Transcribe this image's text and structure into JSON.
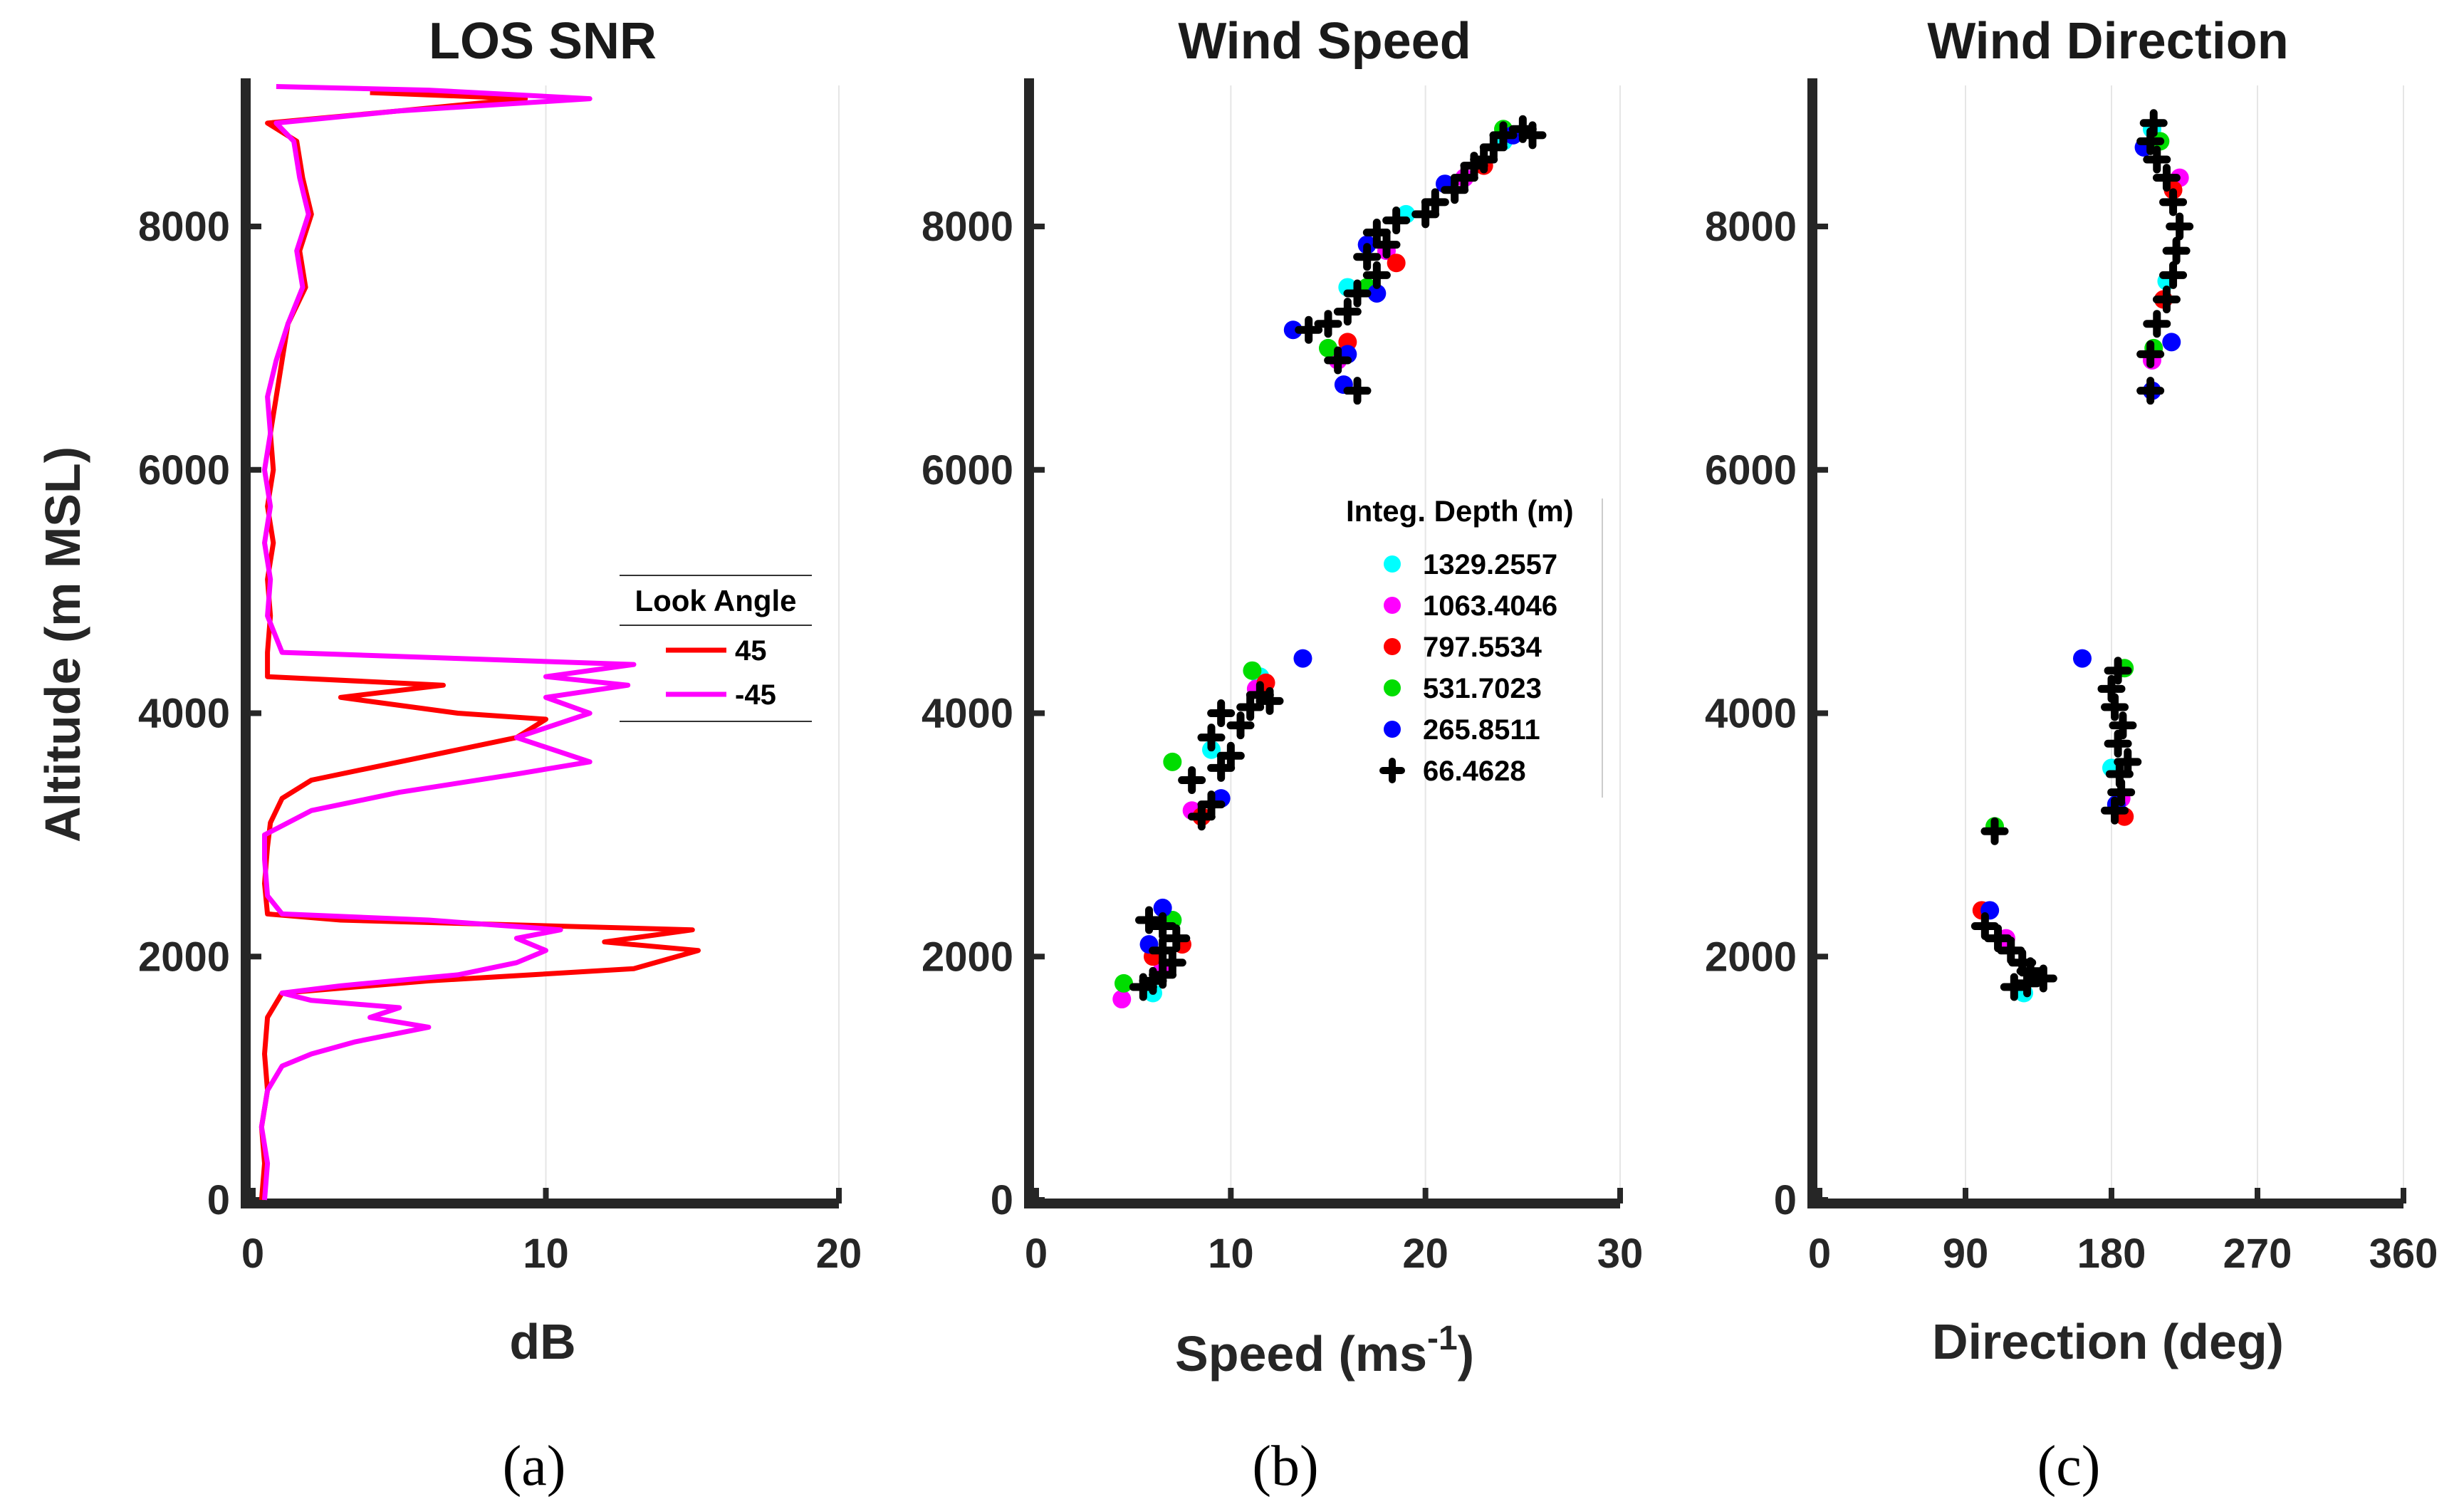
{
  "chart_data": [
    {
      "type": "line",
      "title": "LOS SNR",
      "xlabel": "dB",
      "ylabel": "Altitude (m MSL)",
      "xlim": [
        0,
        20
      ],
      "ylim": [
        0,
        9200
      ],
      "xticks": [
        0,
        10,
        20
      ],
      "yticks": [
        0,
        2000,
        4000,
        6000,
        8000
      ],
      "caption": "(a)",
      "legend": {
        "title": "Look Angle",
        "location": "center-right"
      },
      "series": [
        {
          "name": "45",
          "color": "#ff0000",
          "points": [
            [
              0.3,
              0
            ],
            [
              0.4,
              300
            ],
            [
              0.3,
              600
            ],
            [
              0.5,
              900
            ],
            [
              0.4,
              1200
            ],
            [
              0.5,
              1500
            ],
            [
              1,
              1700
            ],
            [
              6,
              1800
            ],
            [
              13,
              1900
            ],
            [
              15.2,
              2050
            ],
            [
              12,
              2120
            ],
            [
              15,
              2220
            ],
            [
              3,
              2300
            ],
            [
              0.5,
              2350
            ],
            [
              0.4,
              2600
            ],
            [
              0.5,
              2900
            ],
            [
              0.6,
              3100
            ],
            [
              1,
              3300
            ],
            [
              2,
              3450
            ],
            [
              4,
              3550
            ],
            [
              7,
              3700
            ],
            [
              9,
              3800
            ],
            [
              10,
              3950
            ],
            [
              7,
              4000
            ],
            [
              3,
              4130
            ],
            [
              6.5,
              4230
            ],
            [
              0.5,
              4300
            ],
            [
              0.5,
              4500
            ],
            [
              0.6,
              4800
            ],
            [
              0.5,
              5100
            ],
            [
              0.7,
              5400
            ],
            [
              0.5,
              5700
            ],
            [
              0.7,
              6000
            ],
            [
              0.6,
              6300
            ],
            [
              0.8,
              6600
            ],
            [
              1,
              6900
            ],
            [
              1.2,
              7200
            ],
            [
              1.8,
              7500
            ],
            [
              1.6,
              7800
            ],
            [
              2,
              8100
            ],
            [
              1.7,
              8400
            ],
            [
              1.5,
              8700
            ],
            [
              0.5,
              8850
            ],
            [
              5,
              8950
            ],
            [
              9.3,
              9050
            ],
            [
              4,
              9100
            ]
          ]
        },
        {
          "name": "-45",
          "color": "#ff00ff",
          "points": [
            [
              0.4,
              0
            ],
            [
              0.5,
              300
            ],
            [
              0.3,
              600
            ],
            [
              0.5,
              900
            ],
            [
              1,
              1100
            ],
            [
              2,
              1200
            ],
            [
              3.5,
              1300
            ],
            [
              6,
              1420
            ],
            [
              4,
              1500
            ],
            [
              5,
              1580
            ],
            [
              2,
              1640
            ],
            [
              1,
              1700
            ],
            [
              3,
              1760
            ],
            [
              7,
              1850
            ],
            [
              9,
              1950
            ],
            [
              10,
              2050
            ],
            [
              9,
              2150
            ],
            [
              10.5,
              2220
            ],
            [
              6,
              2300
            ],
            [
              1,
              2350
            ],
            [
              0.5,
              2500
            ],
            [
              0.4,
              2800
            ],
            [
              0.4,
              3000
            ],
            [
              2,
              3200
            ],
            [
              5,
              3350
            ],
            [
              9,
              3500
            ],
            [
              11.5,
              3600
            ],
            [
              9,
              3800
            ],
            [
              11.5,
              4000
            ],
            [
              10,
              4130
            ],
            [
              12.8,
              4230
            ],
            [
              10,
              4300
            ],
            [
              13,
              4400
            ],
            [
              7,
              4450
            ],
            [
              1,
              4500
            ],
            [
              0.5,
              4800
            ],
            [
              0.6,
              5100
            ],
            [
              0.4,
              5400
            ],
            [
              0.6,
              5700
            ],
            [
              0.4,
              6000
            ],
            [
              0.6,
              6300
            ],
            [
              0.5,
              6600
            ],
            [
              0.8,
              6900
            ],
            [
              1.2,
              7200
            ],
            [
              1.7,
              7500
            ],
            [
              1.5,
              7800
            ],
            [
              1.9,
              8100
            ],
            [
              1.6,
              8400
            ],
            [
              1.4,
              8700
            ],
            [
              0.8,
              8850
            ],
            [
              5,
              8950
            ],
            [
              11.5,
              9050
            ],
            [
              6,
              9120
            ],
            [
              0.8,
              9150
            ]
          ]
        }
      ]
    },
    {
      "type": "scatter",
      "title": "Wind Speed",
      "xlabel": "Speed (ms",
      "xlabel_sup": "-1",
      "xlabel_close": ")",
      "xlim": [
        0,
        30
      ],
      "ylim": [
        0,
        9200
      ],
      "xticks": [
        0,
        10,
        20,
        30
      ],
      "yticks": [
        0,
        2000,
        4000,
        6000,
        8000
      ],
      "caption": "(b)",
      "legend": {
        "title": "Integ. Depth (m)",
        "location": "center-right"
      },
      "series": [
        {
          "name": "1329.2557",
          "color": "#00ffff",
          "points": [
            [
              6,
              1700
            ],
            [
              7,
              2300
            ],
            [
              9,
              3700
            ],
            [
              11.5,
              4300
            ],
            [
              16,
              7500
            ],
            [
              19,
              8100
            ],
            [
              24,
              8700
            ]
          ]
        },
        {
          "name": "1063.4046",
          "color": "#ff00ff",
          "points": [
            [
              4.4,
              1650
            ],
            [
              6.5,
              1900
            ],
            [
              8,
              3200
            ],
            [
              11.3,
              4200
            ],
            [
              15.5,
              6900
            ],
            [
              18,
              7800
            ],
            [
              22,
              8400
            ]
          ]
        },
        {
          "name": "797.5534",
          "color": "#ff0000",
          "points": [
            [
              6,
              2000
            ],
            [
              7.5,
              2100
            ],
            [
              8.5,
              3150
            ],
            [
              11.8,
              4250
            ],
            [
              16,
              7050
            ],
            [
              18.5,
              7700
            ],
            [
              23,
              8500
            ]
          ]
        },
        {
          "name": "531.7023",
          "color": "#00dd00",
          "points": [
            [
              4.5,
              1780
            ],
            [
              7,
              2300
            ],
            [
              7,
              3600
            ],
            [
              11.1,
              4350
            ],
            [
              15,
              7000
            ],
            [
              17,
              7500
            ],
            [
              24,
              8800
            ]
          ]
        },
        {
          "name": "265.8511",
          "color": "#0000ff",
          "points": [
            [
              5.8,
              2100
            ],
            [
              6.5,
              2400
            ],
            [
              9.5,
              3300
            ],
            [
              13.7,
              4450
            ],
            [
              13.2,
              7150
            ],
            [
              15.8,
              6700
            ],
            [
              16,
              6950
            ],
            [
              17.5,
              7450
            ],
            [
              17,
              7850
            ],
            [
              21,
              8350
            ],
            [
              24.5,
              8750
            ]
          ]
        },
        {
          "name": "66.4628",
          "color": "#000000",
          "points": [
            [
              5.5,
              1750
            ],
            [
              6,
              1800
            ],
            [
              6.5,
              1850
            ],
            [
              7,
              1950
            ],
            [
              6.5,
              2050
            ],
            [
              7.2,
              2150
            ],
            [
              6.5,
              2250
            ],
            [
              5.8,
              2300
            ],
            [
              8.5,
              3150
            ],
            [
              9,
              3250
            ],
            [
              8,
              3450
            ],
            [
              9.5,
              3550
            ],
            [
              10,
              3650
            ],
            [
              9,
              3800
            ],
            [
              10.5,
              3900
            ],
            [
              9.5,
              4000
            ],
            [
              11,
              4050
            ],
            [
              11.5,
              4150
            ],
            [
              12,
              4100
            ],
            [
              16.5,
              6650
            ],
            [
              15.5,
              6900
            ],
            [
              14,
              7150
            ],
            [
              15,
              7200
            ],
            [
              16,
              7300
            ],
            [
              16.5,
              7450
            ],
            [
              17.5,
              7600
            ],
            [
              17,
              7750
            ],
            [
              18,
              7850
            ],
            [
              17.5,
              7950
            ],
            [
              18.5,
              8050
            ],
            [
              20,
              8100
            ],
            [
              20.5,
              8200
            ],
            [
              21.5,
              8300
            ],
            [
              22,
              8400
            ],
            [
              22.5,
              8500
            ],
            [
              23,
              8550
            ],
            [
              23.5,
              8650
            ],
            [
              24,
              8750
            ],
            [
              25,
              8800
            ],
            [
              25.5,
              8750
            ]
          ]
        }
      ]
    },
    {
      "type": "scatter",
      "title": "Wind Direction",
      "xlabel": "Direction (deg)",
      "xlim": [
        0,
        360
      ],
      "ylim": [
        0,
        9200
      ],
      "xticks": [
        0,
        90,
        180,
        270,
        360
      ],
      "yticks": [
        0,
        2000,
        4000,
        6000,
        8000
      ],
      "caption": "(c)",
      "series": [
        {
          "name": "1329.2557",
          "color": "#00ffff",
          "points": [
            [
              126,
              1700
            ],
            [
              180,
              3550
            ],
            [
              214,
              7550
            ],
            [
              205,
              8800
            ]
          ]
        },
        {
          "name": "1063.4046",
          "color": "#ff00ff",
          "points": [
            [
              115,
              2150
            ],
            [
              186,
              3300
            ],
            [
              205,
              6900
            ],
            [
              222,
              8400
            ]
          ]
        },
        {
          "name": "797.5534",
          "color": "#ff0000",
          "points": [
            [
              100,
              2380
            ],
            [
              188,
              3150
            ],
            [
              212,
              7400
            ],
            [
              218,
              8300
            ]
          ]
        },
        {
          "name": "531.7023",
          "color": "#00dd00",
          "points": [
            [
              108,
              3070
            ],
            [
              188,
              4370
            ],
            [
              206,
              7000
            ],
            [
              210,
              8700
            ]
          ]
        },
        {
          "name": "265.8511",
          "color": "#0000ff",
          "points": [
            [
              105,
              2380
            ],
            [
              162,
              4450
            ],
            [
              183,
              3250
            ],
            [
              205,
              6650
            ],
            [
              217,
              7050
            ],
            [
              200,
              8650
            ]
          ]
        },
        {
          "name": "66.4628",
          "color": "#000000",
          "points": [
            [
              102,
              2250
            ],
            [
              110,
              2150
            ],
            [
              118,
              2050
            ],
            [
              125,
              1950
            ],
            [
              130,
              1880
            ],
            [
              138,
              1820
            ],
            [
              128,
              1780
            ],
            [
              120,
              1750
            ],
            [
              108,
              3030
            ],
            [
              182,
              3200
            ],
            [
              186,
              3350
            ],
            [
              185,
              3500
            ],
            [
              190,
              3600
            ],
            [
              184,
              3750
            ],
            [
              187,
              3900
            ],
            [
              182,
              4050
            ],
            [
              180,
              4200
            ],
            [
              184,
              4350
            ],
            [
              204,
              6650
            ],
            [
              204,
              6950
            ],
            [
              208,
              7200
            ],
            [
              214,
              7400
            ],
            [
              218,
              7600
            ],
            [
              220,
              7800
            ],
            [
              222,
              8000
            ],
            [
              218,
              8200
            ],
            [
              214,
              8400
            ],
            [
              208,
              8550
            ],
            [
              204,
              8700
            ],
            [
              206,
              8850
            ]
          ]
        }
      ]
    }
  ]
}
